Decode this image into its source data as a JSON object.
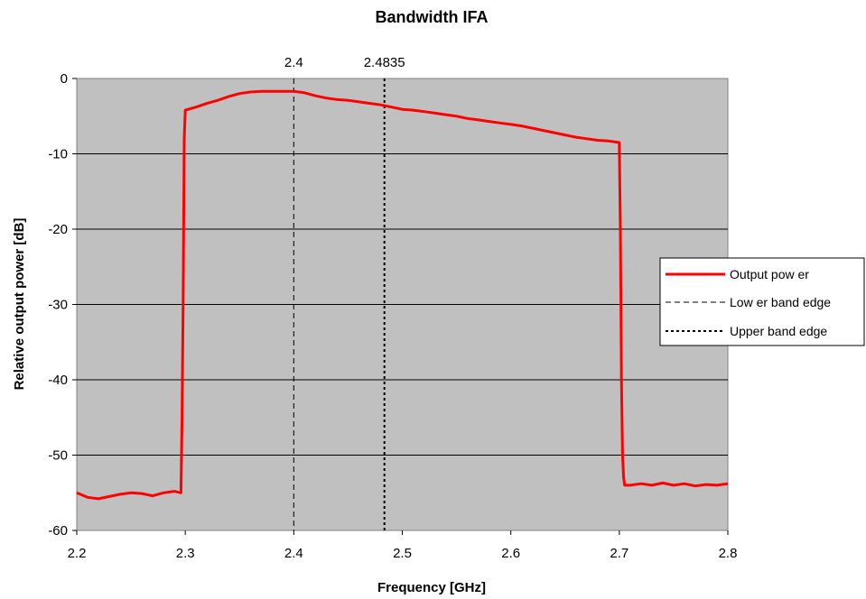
{
  "chart_data": {
    "type": "line",
    "title": "Bandwidth IFA",
    "xlabel": "Frequency [GHz]",
    "ylabel": "Relative output power [dB]",
    "xlim": [
      2.2,
      2.8
    ],
    "ylim": [
      -60,
      0
    ],
    "x_ticks": [
      2.2,
      2.3,
      2.4,
      2.5,
      2.6,
      2.7,
      2.8
    ],
    "x_tick_labels": [
      "2.2",
      "2.3",
      "2.4",
      "2.5",
      "2.6",
      "2.7",
      "2.8"
    ],
    "y_ticks": [
      0,
      -10,
      -20,
      -30,
      -40,
      -50,
      -60
    ],
    "y_tick_labels": [
      "0",
      "-10",
      "-20",
      "-30",
      "-40",
      "-50",
      "-60"
    ],
    "grid": "horizontal",
    "plot_background": "#c0c0c0",
    "legend_position": "right",
    "annotations": [
      {
        "text": "2.4",
        "x": 2.4
      },
      {
        "text": "2.4835",
        "x": 2.4835
      }
    ],
    "series": [
      {
        "name": "Output pow er",
        "color": "#ff0000",
        "style": "solid",
        "x": [
          2.2,
          2.21,
          2.22,
          2.23,
          2.24,
          2.25,
          2.26,
          2.27,
          2.28,
          2.29,
          2.296,
          2.297,
          2.298,
          2.299,
          2.3,
          2.31,
          2.32,
          2.33,
          2.34,
          2.35,
          2.36,
          2.37,
          2.38,
          2.39,
          2.4,
          2.41,
          2.42,
          2.43,
          2.44,
          2.45,
          2.46,
          2.47,
          2.48,
          2.49,
          2.5,
          2.51,
          2.52,
          2.53,
          2.54,
          2.55,
          2.56,
          2.57,
          2.58,
          2.59,
          2.6,
          2.61,
          2.62,
          2.63,
          2.64,
          2.65,
          2.66,
          2.67,
          2.68,
          2.69,
          2.7,
          2.701,
          2.702,
          2.703,
          2.704,
          2.705,
          2.71,
          2.72,
          2.73,
          2.74,
          2.75,
          2.76,
          2.77,
          2.78,
          2.79,
          2.8
        ],
        "y": [
          -55.0,
          -55.6,
          -55.8,
          -55.5,
          -55.2,
          -55.0,
          -55.1,
          -55.4,
          -55.0,
          -54.8,
          -55.0,
          -45.0,
          -30.0,
          -8.0,
          -4.2,
          -3.8,
          -3.3,
          -2.9,
          -2.4,
          -2.0,
          -1.8,
          -1.7,
          -1.7,
          -1.7,
          -1.7,
          -1.9,
          -2.3,
          -2.6,
          -2.8,
          -2.9,
          -3.1,
          -3.3,
          -3.5,
          -3.8,
          -4.1,
          -4.2,
          -4.4,
          -4.6,
          -4.8,
          -5.0,
          -5.3,
          -5.5,
          -5.7,
          -5.9,
          -6.1,
          -6.3,
          -6.6,
          -6.9,
          -7.2,
          -7.5,
          -7.8,
          -8.0,
          -8.2,
          -8.3,
          -8.5,
          -20.0,
          -40.0,
          -50.0,
          -53.0,
          -54.0,
          -54.0,
          -53.8,
          -54.0,
          -53.7,
          -54.0,
          -53.8,
          -54.1,
          -53.9,
          -54.0,
          -53.8
        ]
      },
      {
        "name": "Low er band edge",
        "color": "#000000",
        "style": "dashed",
        "x": [
          2.4,
          2.4
        ],
        "y": [
          0,
          -60
        ]
      },
      {
        "name": "Upper band edge",
        "color": "#000000",
        "style": "dotted",
        "x": [
          2.4835,
          2.4835
        ],
        "y": [
          0,
          -60
        ]
      }
    ]
  }
}
